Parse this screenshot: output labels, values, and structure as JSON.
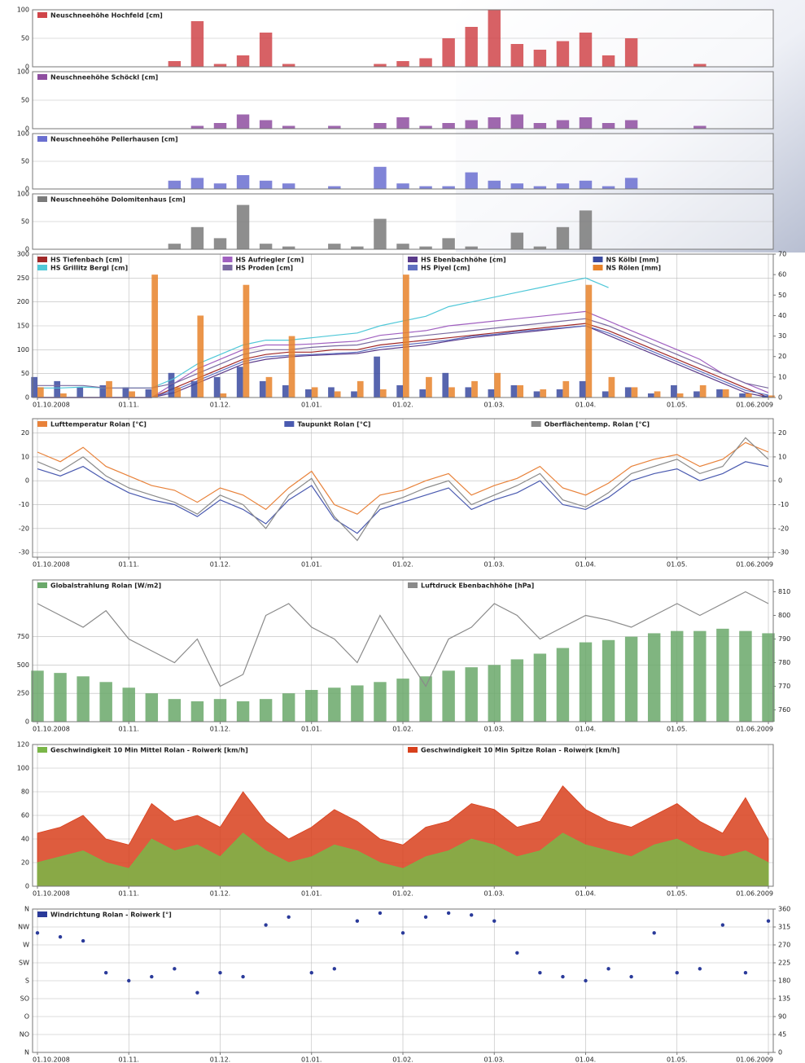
{
  "chart_data": [
    {
      "type": "bar",
      "title": "Neuschneehöhe Hochfeld [cm]",
      "color": "#d0454a",
      "ylim": [
        0,
        100
      ],
      "yticks": [
        0,
        50,
        100
      ],
      "grid": true,
      "values": [
        0,
        0,
        0,
        0,
        0,
        0,
        10,
        80,
        5,
        20,
        60,
        5,
        0,
        0,
        0,
        5,
        10,
        15,
        50,
        70,
        100,
        40,
        30,
        45,
        60,
        20,
        50,
        0,
        0,
        5,
        0,
        0,
        0
      ]
    },
    {
      "type": "bar",
      "title": "Neuschneehöhe Schöckl [cm]",
      "color": "#8e4ea0",
      "ylim": [
        0,
        100
      ],
      "yticks": [
        0,
        50,
        100
      ],
      "grid": true,
      "values": [
        0,
        0,
        0,
        0,
        0,
        0,
        0,
        5,
        10,
        25,
        15,
        5,
        0,
        5,
        0,
        10,
        20,
        5,
        10,
        15,
        20,
        25,
        10,
        15,
        20,
        10,
        15,
        0,
        0,
        5,
        0,
        0,
        0
      ]
    },
    {
      "type": "bar",
      "title": "Neuschneehöhe Pellerhausen [cm]",
      "color": "#6a6fd0",
      "ylim": [
        0,
        100
      ],
      "yticks": [
        0,
        50,
        100
      ],
      "grid": true,
      "values": [
        0,
        0,
        0,
        0,
        0,
        0,
        15,
        20,
        10,
        25,
        15,
        10,
        0,
        5,
        0,
        40,
        10,
        5,
        5,
        30,
        15,
        10,
        5,
        10,
        15,
        5,
        20,
        0,
        0,
        0,
        0,
        0,
        0
      ]
    },
    {
      "type": "bar",
      "title": "Neuschneehöhe Dolomitenhaus [cm]",
      "color": "#7a7a7a",
      "ylim": [
        0,
        100
      ],
      "yticks": [
        0,
        50,
        100
      ],
      "grid": true,
      "values": [
        0,
        0,
        0,
        0,
        0,
        0,
        10,
        40,
        20,
        80,
        10,
        5,
        0,
        10,
        5,
        55,
        10,
        5,
        20,
        5,
        0,
        30,
        5,
        40,
        70,
        0,
        0,
        0,
        0,
        0,
        0,
        0,
        0
      ]
    },
    {
      "type": "line",
      "ylim": [
        0,
        300
      ],
      "yticks": [
        0,
        50,
        100,
        150,
        200,
        250,
        300
      ],
      "y2lim": [
        0,
        70
      ],
      "y2ticks": [
        0,
        10,
        20,
        30,
        40,
        50,
        60,
        70
      ],
      "grid": true,
      "categories": [
        "01.10.2008",
        null,
        null,
        null,
        "01.11.",
        null,
        null,
        null,
        "01.12.",
        null,
        null,
        null,
        "01.01.",
        null,
        null,
        null,
        "01.02.",
        null,
        null,
        null,
        "01.03.",
        null,
        null,
        null,
        "01.04.",
        null,
        null,
        null,
        "01.05.",
        null,
        null,
        null,
        "01.06.2009"
      ],
      "series": [
        {
          "name": "HS Tiefenbach [cm]",
          "color": "#a02828",
          "values": [
            0,
            0,
            0,
            0,
            0,
            0,
            20,
            40,
            60,
            80,
            90,
            95,
            95,
            100,
            100,
            110,
            115,
            120,
            125,
            130,
            135,
            140,
            145,
            150,
            155,
            140,
            120,
            100,
            80,
            60,
            40,
            20,
            0
          ]
        },
        {
          "name": "HS Aufriegler [cm]",
          "color": "#a060c0",
          "values": [
            0,
            0,
            0,
            0,
            0,
            0,
            30,
            60,
            80,
            100,
            110,
            110,
            112,
            115,
            118,
            130,
            135,
            140,
            150,
            155,
            160,
            165,
            170,
            175,
            180,
            160,
            140,
            120,
            100,
            80,
            50,
            30,
            10
          ]
        },
        {
          "name": "HS Ebenbachhöhe [cm]",
          "color": "#5a3a8a",
          "values": [
            0,
            0,
            0,
            0,
            0,
            0,
            10,
            30,
            50,
            70,
            80,
            85,
            88,
            90,
            92,
            100,
            105,
            110,
            118,
            125,
            130,
            135,
            140,
            145,
            150,
            130,
            110,
            90,
            70,
            50,
            30,
            10,
            0
          ]
        },
        {
          "name": "NS Kölbl [mm]",
          "color": "#3a4aa0",
          "type": "bar",
          "axis": "y2",
          "values": [
            10,
            8,
            5,
            6,
            5,
            4,
            12,
            8,
            10,
            15,
            8,
            6,
            4,
            5,
            3,
            20,
            6,
            4,
            12,
            5,
            4,
            6,
            3,
            4,
            8,
            3,
            5,
            2,
            6,
            3,
            4,
            2,
            1
          ]
        },
        {
          "name": "HS Grillitz Bergl [cm]",
          "color": "#50c8d8",
          "values": [
            20,
            20,
            22,
            20,
            20,
            20,
            40,
            70,
            90,
            110,
            120,
            120,
            125,
            130,
            135,
            150,
            160,
            170,
            190,
            200,
            210,
            220,
            230,
            240,
            250,
            230,
            null,
            null,
            null,
            null,
            null,
            null,
            null
          ]
        },
        {
          "name": "HS Proden [cm]",
          "color": "#7a6aa0",
          "values": [
            25,
            25,
            25,
            20,
            20,
            20,
            30,
            50,
            70,
            90,
            100,
            100,
            105,
            108,
            110,
            120,
            125,
            130,
            135,
            140,
            145,
            150,
            155,
            160,
            165,
            150,
            130,
            110,
            90,
            70,
            50,
            30,
            20
          ]
        },
        {
          "name": "HS Piyel [cm]",
          "color": "#6070c0",
          "values": [
            0,
            0,
            0,
            0,
            0,
            0,
            15,
            35,
            55,
            75,
            85,
            88,
            90,
            92,
            95,
            105,
            110,
            115,
            120,
            128,
            132,
            138,
            142,
            146,
            150,
            135,
            115,
            95,
            75,
            55,
            35,
            15,
            5
          ]
        },
        {
          "name": "NS Rölen [mm]",
          "color": "#e8822a",
          "type": "bar",
          "axis": "y2",
          "values": [
            5,
            2,
            0,
            8,
            3,
            60,
            5,
            40,
            2,
            55,
            10,
            30,
            5,
            3,
            8,
            4,
            60,
            10,
            5,
            8,
            12,
            6,
            4,
            8,
            55,
            10,
            5,
            3,
            2,
            6,
            4,
            2,
            1
          ]
        }
      ]
    },
    {
      "type": "line",
      "ylim": [
        -32,
        26
      ],
      "yticks": [
        -30,
        -20,
        -10,
        0,
        10,
        20
      ],
      "y2lim": [
        -32,
        26
      ],
      "y2ticks": [
        -30,
        -20,
        -10,
        0,
        10,
        20
      ],
      "grid": true,
      "categories": [
        "01.10.2008",
        null,
        null,
        null,
        "01.11.",
        null,
        null,
        null,
        "01.12.",
        null,
        null,
        null,
        "01.01.",
        null,
        null,
        null,
        "01.02.",
        null,
        null,
        null,
        "01.03.",
        null,
        null,
        null,
        "01.04.",
        null,
        null,
        null,
        "01.05.",
        null,
        null,
        null,
        "01.06.2009"
      ],
      "series": [
        {
          "name": "Lufttemperatur Rolan [°C]",
          "color": "#e8823a",
          "values": [
            12,
            8,
            14,
            6,
            2,
            -2,
            -4,
            -9,
            -3,
            -6,
            -12,
            -3,
            4,
            -10,
            -14,
            -6,
            -4,
            0,
            3,
            -6,
            -2,
            1,
            6,
            -3,
            -6,
            -1,
            6,
            9,
            11,
            6,
            9,
            16,
            12
          ]
        },
        {
          "name": "Taupunkt Rolan [°C]",
          "color": "#4a5ab0",
          "values": [
            5,
            2,
            6,
            0,
            -5,
            -8,
            -10,
            -15,
            -8,
            -12,
            -18,
            -8,
            -2,
            -16,
            -22,
            -12,
            -9,
            -6,
            -3,
            -12,
            -8,
            -5,
            0,
            -10,
            -12,
            -7,
            0,
            3,
            5,
            0,
            3,
            8,
            6
          ]
        },
        {
          "name": "Oberflächentemp. Rolan [°C]",
          "color": "#8a8a8a",
          "values": [
            8,
            4,
            10,
            2,
            -3,
            -6,
            -9,
            -14,
            -6,
            -10,
            -20,
            -6,
            1,
            -15,
            -25,
            -10,
            -7,
            -3,
            0,
            -10,
            -6,
            -2,
            3,
            -8,
            -11,
            -5,
            3,
            6,
            9,
            3,
            6,
            18,
            9
          ]
        }
      ]
    },
    {
      "type": "bar",
      "ylim": [
        0,
        1250
      ],
      "yticks": [
        0,
        250,
        500,
        750
      ],
      "y2lim": [
        755,
        815
      ],
      "y2ticks": [
        760,
        770,
        780,
        790,
        800,
        810
      ],
      "grid": true,
      "categories": [
        "01.10.2008",
        null,
        null,
        null,
        "01.11.",
        null,
        null,
        null,
        "01.12.",
        null,
        null,
        null,
        "01.01.",
        null,
        null,
        null,
        "01.02.",
        null,
        null,
        null,
        "01.03.",
        null,
        null,
        null,
        "01.04.",
        null,
        null,
        null,
        "01.05.",
        null,
        null,
        null,
        "01.06.2009"
      ],
      "series": [
        {
          "name": "Globalstrahlung Rolan [W/m2]",
          "color": "#6aa86a",
          "values": [
            450,
            430,
            400,
            350,
            300,
            250,
            200,
            180,
            200,
            180,
            200,
            250,
            280,
            300,
            320,
            350,
            380,
            400,
            450,
            480,
            500,
            550,
            600,
            650,
            700,
            720,
            750,
            780,
            800,
            800,
            820,
            800,
            780
          ]
        },
        {
          "name": "Luftdruck Ebenbachhöhe [hPa]",
          "color": "#8a8a8a",
          "type": "line",
          "axis": "y2",
          "values": [
            805,
            800,
            795,
            802,
            790,
            785,
            780,
            790,
            770,
            775,
            800,
            805,
            795,
            790,
            780,
            800,
            785,
            770,
            790,
            795,
            805,
            800,
            790,
            795,
            800,
            798,
            795,
            800,
            805,
            800,
            805,
            810,
            805
          ]
        }
      ]
    },
    {
      "type": "area",
      "ylim": [
        0,
        120
      ],
      "yticks": [
        0,
        20,
        40,
        60,
        80,
        100,
        120
      ],
      "grid": true,
      "categories": [
        "01.10.2008",
        null,
        null,
        null,
        "01.11.",
        null,
        null,
        null,
        "01.12.",
        null,
        null,
        null,
        "01.01.",
        null,
        null,
        null,
        "01.02.",
        null,
        null,
        null,
        "01.03.",
        null,
        null,
        null,
        "01.04.",
        null,
        null,
        null,
        "01.05.",
        null,
        null,
        null,
        "01.06.2009"
      ],
      "series": [
        {
          "name": "Geschwindigkeit 10 Min Mittel Rolan - Roiwerk [km/h]",
          "color": "#7ab648",
          "values": [
            20,
            25,
            30,
            20,
            15,
            40,
            30,
            35,
            25,
            45,
            30,
            20,
            25,
            35,
            30,
            20,
            15,
            25,
            30,
            40,
            35,
            25,
            30,
            45,
            35,
            30,
            25,
            35,
            40,
            30,
            25,
            30,
            20
          ]
        },
        {
          "name": "Geschwindigkeit 10 Min Spitze Rolan - Roiwerk [km/h]",
          "color": "#d8401c",
          "values": [
            45,
            50,
            60,
            40,
            35,
            70,
            55,
            60,
            50,
            80,
            55,
            40,
            50,
            65,
            55,
            40,
            35,
            50,
            55,
            70,
            65,
            50,
            55,
            85,
            65,
            55,
            50,
            60,
            70,
            55,
            45,
            75,
            40
          ]
        }
      ]
    },
    {
      "type": "scatter",
      "ylim": [
        0,
        360
      ],
      "y2lim": [
        0,
        360
      ],
      "yticks": [
        {
          "value": 0,
          "label": "N"
        },
        {
          "value": 45,
          "label": "NO"
        },
        {
          "value": 90,
          "label": "O"
        },
        {
          "value": 135,
          "label": "SO"
        },
        {
          "value": 180,
          "label": "S"
        },
        {
          "value": 225,
          "label": "SW"
        },
        {
          "value": 270,
          "label": "W"
        },
        {
          "value": 315,
          "label": "NW"
        },
        {
          "value": 360,
          "label": "N"
        }
      ],
      "y2ticks": [
        0,
        45,
        90,
        135,
        180,
        225,
        270,
        315,
        360
      ],
      "grid": true,
      "categories": [
        "01.10.2008",
        null,
        null,
        null,
        "01.11.",
        null,
        null,
        null,
        "01.12.",
        null,
        null,
        null,
        "01.01.",
        null,
        null,
        null,
        "01.02.",
        null,
        null,
        null,
        "01.03.",
        null,
        null,
        null,
        "01.04.",
        null,
        null,
        null,
        "01.05.",
        null,
        null,
        null,
        "01.06.2009"
      ],
      "series": [
        {
          "name": "Windrichtung Rolan - Roiwerk [°]",
          "color": "#2a3a9a",
          "values": [
            300,
            290,
            280,
            200,
            180,
            190,
            210,
            150,
            200,
            190,
            320,
            340,
            200,
            210,
            330,
            350,
            300,
            340,
            350,
            345,
            330,
            250,
            200,
            190,
            180,
            210,
            190,
            300,
            200,
            210,
            320,
            200,
            330
          ]
        }
      ]
    }
  ]
}
